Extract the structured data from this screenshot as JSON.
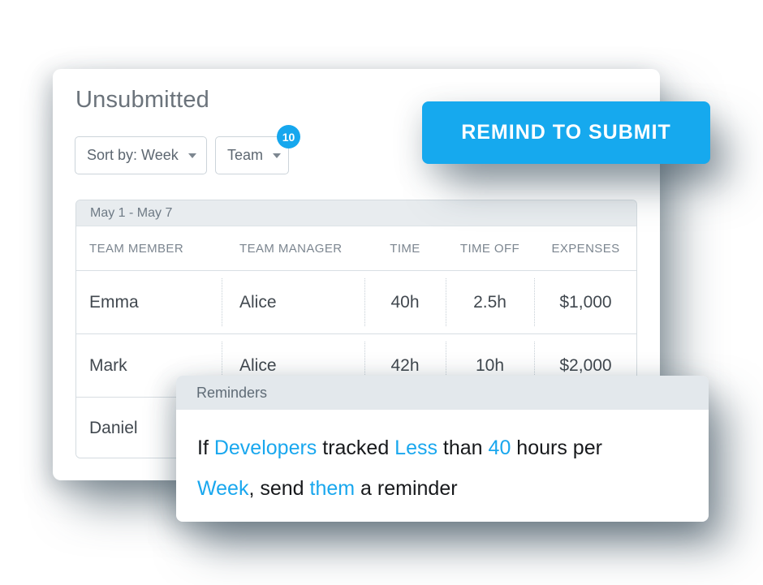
{
  "panel": {
    "title": "Unsubmitted",
    "sort_dropdown": {
      "label": "Sort by: Week"
    },
    "team_dropdown": {
      "label": "Team",
      "badge": "10"
    },
    "remind_button": {
      "label": "REMIND TO SUBMIT"
    }
  },
  "table": {
    "period": "May 1 - May 7",
    "columns": [
      "TEAM MEMBER",
      "TEAM MANAGER",
      "TIME",
      "TIME OFF",
      "EXPENSES"
    ],
    "rows": [
      {
        "member": "Emma",
        "manager": "Alice",
        "time": "40h",
        "time_off": "2.5h",
        "expenses": "$1,000"
      },
      {
        "member": "Mark",
        "manager": "Alice",
        "time": "42h",
        "time_off": "10h",
        "expenses": "$2,000"
      },
      {
        "member": "Daniel",
        "manager": "",
        "time": "",
        "time_off": "",
        "expenses": ""
      }
    ]
  },
  "reminders": {
    "title": "Reminders",
    "lines": [
      [
        {
          "text": "If "
        },
        {
          "text": "Developers"
        },
        {
          "text": " tracked "
        },
        {
          "text": "Less"
        },
        {
          "text": " than "
        },
        {
          "text": "40"
        },
        {
          "text": " hours per"
        }
      ],
      [
        {
          "text": "Week"
        },
        {
          "text": ", send "
        },
        {
          "text": "them"
        },
        {
          "text": " a reminder"
        }
      ]
    ]
  },
  "colors": {
    "accent_blue": "#16a9ee",
    "band_gray": "#e8ecef",
    "shadow_slate": "#40535f"
  }
}
